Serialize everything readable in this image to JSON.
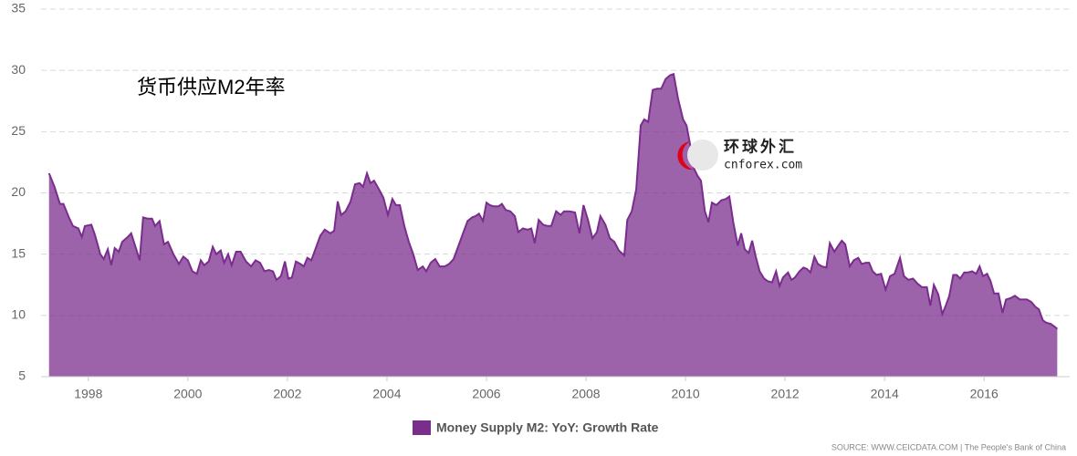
{
  "chart_data": {
    "type": "area",
    "annotation": "货币供应M2年率",
    "watermark": {
      "text": "环球外汇",
      "url": "cnforex.com"
    },
    "source": "SOURCE: WWW.CEICDATA.COM | The People's Bank of China",
    "xlim": [
      1997.05,
      2017.72
    ],
    "xticks": [
      1998,
      2000,
      2002,
      2004,
      2006,
      2008,
      2010,
      2012,
      2014,
      2016
    ],
    "ylim": [
      5,
      35
    ],
    "yticks": [
      5,
      10,
      15,
      20,
      25,
      30,
      35
    ],
    "grid": true,
    "legend": "bottom",
    "x": [
      1997.21,
      1997.32,
      1997.43,
      1997.5,
      1997.61,
      1997.69,
      1997.8,
      1997.87,
      1997.93,
      1998.06,
      1998.13,
      1998.24,
      1998.31,
      1998.39,
      1998.46,
      1998.53,
      1998.61,
      1998.68,
      1998.79,
      1998.86,
      1998.97,
      1999.03,
      1999.1,
      1999.19,
      1999.28,
      1999.34,
      1999.43,
      1999.52,
      1999.6,
      1999.71,
      1999.82,
      1999.91,
      2000.0,
      2000.09,
      2000.18,
      2000.26,
      2000.33,
      2000.42,
      2000.5,
      2000.57,
      2000.66,
      2000.73,
      2000.81,
      2000.88,
      2000.97,
      2001.06,
      2001.17,
      2001.27,
      2001.36,
      2001.45,
      2001.54,
      2001.63,
      2001.71,
      2001.78,
      2001.87,
      2001.95,
      2002.02,
      2002.09,
      2002.17,
      2002.26,
      2002.33,
      2002.4,
      2002.48,
      2002.57,
      2002.66,
      2002.75,
      2002.86,
      2002.94,
      2003.01,
      2003.08,
      2003.17,
      2003.27,
      2003.36,
      2003.45,
      2003.52,
      2003.6,
      2003.67,
      2003.74,
      2003.84,
      2003.93,
      2004.02,
      2004.11,
      2004.18,
      2004.26,
      2004.35,
      2004.44,
      2004.53,
      2004.62,
      2004.72,
      2004.79,
      2004.88,
      2004.97,
      2005.06,
      2005.16,
      2005.25,
      2005.34,
      2005.43,
      2005.52,
      2005.62,
      2005.71,
      2005.78,
      2005.85,
      2005.93,
      2006.0,
      2006.07,
      2006.15,
      2006.24,
      2006.31,
      2006.39,
      2006.48,
      2006.57,
      2006.64,
      2006.73,
      2006.83,
      2006.9,
      2006.97,
      2007.05,
      2007.14,
      2007.23,
      2007.3,
      2007.4,
      2007.49,
      2007.56,
      2007.67,
      2007.78,
      2007.87,
      2007.95,
      2008.04,
      2008.13,
      2008.22,
      2008.29,
      2008.39,
      2008.48,
      2008.57,
      2008.66,
      2008.77,
      2008.83,
      2008.92,
      2009.01,
      2009.1,
      2009.17,
      2009.25,
      2009.34,
      2009.43,
      2009.51,
      2009.6,
      2009.69,
      2009.76,
      2009.85,
      2009.95,
      2010.02,
      2010.09,
      2010.17,
      2010.24,
      2010.31,
      2010.39,
      2010.46,
      2010.53,
      2010.62,
      2010.72,
      2010.81,
      2010.88,
      2010.96,
      2011.05,
      2011.12,
      2011.19,
      2011.27,
      2011.34,
      2011.41,
      2011.49,
      2011.58,
      2011.65,
      2011.74,
      2011.82,
      2011.89,
      2011.96,
      2012.06,
      2012.13,
      2012.2,
      2012.29,
      2012.37,
      2012.44,
      2012.51,
      2012.59,
      2012.66,
      2012.74,
      2012.83,
      2012.9,
      2012.99,
      2013.07,
      2013.14,
      2013.21,
      2013.3,
      2013.38,
      2013.47,
      2013.54,
      2013.62,
      2013.69,
      2013.76,
      2013.84,
      2013.93,
      2014.02,
      2014.11,
      2014.2,
      2014.31,
      2014.39,
      2014.48,
      2014.57,
      2014.66,
      2014.75,
      2014.85,
      2014.92,
      2014.99,
      2015.08,
      2015.16,
      2015.23,
      2015.3,
      2015.38,
      2015.45,
      2015.52,
      2015.6,
      2015.67,
      2015.76,
      2015.84,
      2015.91,
      2015.98,
      2016.06,
      2016.13,
      2016.2,
      2016.29,
      2016.37,
      2016.44,
      2016.53,
      2016.62,
      2016.72,
      2016.79,
      2016.86,
      2016.95,
      2017.03,
      2017.1,
      2017.18,
      2017.25,
      2017.34,
      2017.41,
      2017.47
    ],
    "series": [
      {
        "name": "Money Supply M2: YoY: Growth Rate",
        "color": "#7b2d8e",
        "values": [
          21.6,
          20.5,
          19.1,
          19.1,
          18.0,
          17.3,
          17.1,
          16.4,
          17.3,
          17.4,
          16.6,
          15.0,
          14.6,
          15.4,
          14.1,
          15.5,
          15.2,
          16.0,
          16.4,
          16.7,
          15.3,
          14.5,
          18.0,
          17.9,
          17.9,
          17.3,
          17.7,
          15.8,
          16.0,
          15.0,
          14.2,
          14.8,
          14.5,
          13.6,
          13.4,
          14.5,
          14.1,
          14.4,
          15.6,
          15.0,
          15.3,
          14.3,
          15.0,
          14.1,
          15.2,
          15.2,
          14.4,
          14.0,
          14.5,
          14.3,
          13.6,
          13.7,
          13.6,
          12.9,
          13.2,
          14.4,
          13.0,
          13.1,
          14.4,
          14.2,
          14.0,
          14.7,
          14.5,
          15.5,
          16.5,
          17.0,
          16.7,
          16.9,
          19.3,
          18.2,
          18.5,
          19.3,
          20.7,
          20.8,
          20.5,
          21.6,
          20.8,
          21.0,
          20.3,
          19.6,
          18.2,
          19.5,
          19.0,
          19.0,
          17.3,
          16.0,
          15.0,
          13.7,
          14.0,
          13.6,
          14.3,
          14.6,
          14.0,
          14.0,
          14.2,
          14.6,
          15.6,
          16.6,
          17.7,
          18.0,
          18.1,
          18.3,
          17.7,
          19.2,
          19.0,
          18.9,
          18.9,
          19.1,
          18.6,
          18.5,
          18.1,
          16.8,
          17.1,
          17.0,
          17.1,
          15.9,
          17.8,
          17.4,
          17.3,
          17.3,
          18.5,
          18.2,
          18.5,
          18.5,
          18.4,
          16.7,
          19.0,
          17.8,
          16.3,
          16.8,
          18.1,
          17.4,
          16.3,
          16.0,
          15.3,
          14.9,
          17.8,
          18.5,
          20.3,
          25.5,
          26.0,
          25.8,
          28.4,
          28.5,
          28.5,
          29.3,
          29.6,
          29.7,
          27.7,
          26.0,
          25.5,
          24.0,
          22.0,
          21.4,
          21.0,
          18.5,
          17.6,
          19.2,
          19.0,
          19.4,
          19.5,
          19.7,
          17.6,
          15.7,
          16.7,
          15.4,
          15.1,
          16.1,
          14.8,
          13.6,
          13.0,
          12.8,
          12.7,
          13.6,
          12.4,
          13.1,
          13.5,
          12.9,
          13.1,
          13.6,
          13.9,
          13.8,
          13.5,
          14.8,
          14.2,
          14.0,
          13.9,
          15.9,
          15.2,
          15.7,
          16.1,
          15.8,
          14.0,
          14.5,
          14.7,
          14.2,
          14.3,
          14.3,
          13.6,
          13.3,
          13.4,
          12.1,
          13.2,
          13.4,
          14.7,
          13.2,
          12.9,
          13.0,
          12.6,
          12.3,
          12.3,
          10.8,
          12.5,
          11.7,
          10.1,
          10.8,
          11.6,
          13.3,
          13.3,
          13.0,
          13.5,
          13.5,
          13.6,
          13.4,
          14.0,
          13.2,
          13.4,
          12.8,
          11.8,
          11.8,
          10.2,
          11.3,
          11.4,
          11.6,
          11.3,
          11.3,
          11.3,
          11.1,
          10.7,
          10.5,
          9.6,
          9.4,
          9.3,
          9.1,
          8.9
        ]
      }
    ]
  }
}
